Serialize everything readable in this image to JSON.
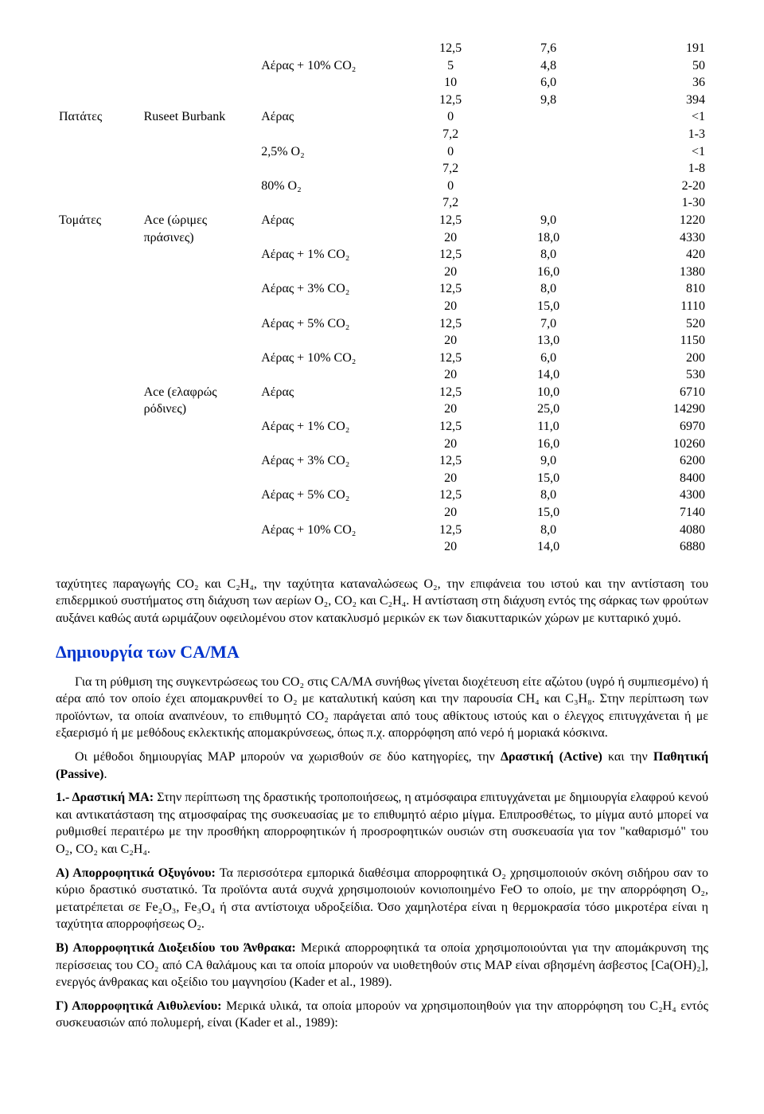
{
  "table": {
    "col_widths": [
      "13%",
      "18%",
      "22%",
      "15%",
      "15%",
      "17%"
    ],
    "font_size_pt": 12,
    "rows": [
      [
        "",
        "",
        "",
        "12,5",
        "7,6",
        "191"
      ],
      [
        "",
        "",
        "Αέρας + 10% CO₂",
        "5",
        "4,8",
        "50"
      ],
      [
        "",
        "",
        "",
        "10",
        "6,0",
        "36"
      ],
      [
        "",
        "",
        "",
        "12,5",
        "9,8",
        "394"
      ],
      [
        "Πατάτες",
        "Ruseet Burbank",
        "Αέρας",
        "0",
        "",
        "<1"
      ],
      [
        "",
        "",
        "",
        "7,2",
        "",
        "1-3"
      ],
      [
        "",
        "",
        "2,5% O₂",
        "0",
        "",
        "<1"
      ],
      [
        "",
        "",
        "",
        "7,2",
        "",
        "1-8"
      ],
      [
        "",
        "",
        "80% O₂",
        "0",
        "",
        "2-20"
      ],
      [
        "",
        "",
        "",
        "7,2",
        "",
        "1-30"
      ],
      [
        "Τομάτες",
        "Ace (ώριμες",
        "Αέρας",
        "12,5",
        "9,0",
        "1220"
      ],
      [
        "",
        "πράσινες)",
        "",
        "20",
        "18,0",
        "4330"
      ],
      [
        "",
        "",
        "Αέρας + 1% CO₂",
        "12,5",
        "8,0",
        "420"
      ],
      [
        "",
        "",
        "",
        "20",
        "16,0",
        "1380"
      ],
      [
        "",
        "",
        "Αέρας + 3% CO₂",
        "12,5",
        "8,0",
        "810"
      ],
      [
        "",
        "",
        "",
        "20",
        "15,0",
        "1110"
      ],
      [
        "",
        "",
        "Αέρας + 5% CO₂",
        "12,5",
        "7,0",
        "520"
      ],
      [
        "",
        "",
        "",
        "20",
        "13,0",
        "1150"
      ],
      [
        "",
        "",
        "Αέρας + 10% CO₂",
        "12,5",
        "6,0",
        "200"
      ],
      [
        "",
        "",
        "",
        "20",
        "14,0",
        "530"
      ],
      [
        "",
        "Ace (ελαφρώς",
        "Αέρας",
        "12,5",
        "10,0",
        "6710"
      ],
      [
        "",
        "ρόδινες)",
        "",
        "20",
        "25,0",
        "14290"
      ],
      [
        "",
        "",
        "Αέρας + 1% CO₂",
        "12,5",
        "11,0",
        "6970"
      ],
      [
        "",
        "",
        "",
        "20",
        "16,0",
        "10260"
      ],
      [
        "",
        "",
        "Αέρας + 3% CO₂",
        "12,5",
        "9,0",
        "6200"
      ],
      [
        "",
        "",
        "",
        "20",
        "15,0",
        "8400"
      ],
      [
        "",
        "",
        "Αέρας + 5% CO₂",
        "12,5",
        "8,0",
        "4300"
      ],
      [
        "",
        "",
        "",
        "20",
        "15,0",
        "7140"
      ],
      [
        "",
        "",
        "Αέρας + 10% CO₂",
        "12,5",
        "8,0",
        "4080"
      ],
      [
        "",
        "",
        "",
        "20",
        "14,0",
        "6880"
      ]
    ]
  },
  "para1": "ταχύτητες παραγωγής CO₂ και C₂H₄, την ταχύτητα καταναλώσεως O₂, την επιφάνεια του ιστού και την αντίσταση του επιδερμικού συστήματος στη διάχυση των αερίων O₂, CO₂ και C₂H₄. Η αντίσταση στη διάχυση εντός της σάρκας των φρούτων αυξάνει καθώς αυτά ωριμάζουν οφειλομένου στον κατακλυσμό μερικών εκ των διακυτταρικών χώρων με κυτταρικό χυμό.",
  "heading": "Δημιουργία των CA/MA",
  "heading_color": "#0033cc",
  "para2": "Για τη ρύθμιση της συγκεντρώσεως του CO₂ στις CA/MA συνήθως γίνεται διοχέτευση είτε αζώτου (υγρό ή συμπιεσμένο) ή αέρα από τον οποίο έχει απομακρυνθεί το O₂ με καταλυτική καύση και την παρουσία CH₄ και C₃H₈. Στην περίπτωση των προϊόντων, τα οποία αναπνέουν, το επιθυμητό CO₂ παράγεται από τους αθίκτους ιστούς και ο έλεγχος επιτυγχάνεται ή με εξαερισμό ή με μεθόδους εκλεκτικής απομακρύνσεως, όπως π.χ. απορρόφηση από νερό ή μοριακά κόσκινα.",
  "para3_a": "Οι μέθοδοι δημιουργίας MAP μπορούν να χωρισθούν σε δύο κατηγορίες, την ",
  "para3_b1": "Δραστική (Active)",
  "para3_mid": " και την ",
  "para3_b2": "Παθητική (Passive)",
  "para3_end": ".",
  "para4_b": "1.- Δραστική MA:",
  "para4": " Στην περίπτωση της δραστικής τροποποιήσεως, η ατμόσφαιρα επιτυγχάνεται με δημιουργία ελαφρού κενού και αντικατάσταση της ατμοσφαίρας της συσκευασίας με το επιθυμητό αέριο μίγμα. Επιπροσθέτως, το μίγμα αυτό μπορεί να ρυθμισθεί περαιτέρω με την προσθήκη απορροφητικών ή προσροφητικών ουσιών στη συσκευασία για τον \"καθαρισμό\" του O₂, CO₂ και C₂H₄.",
  "para5_b": "Α) Απορροφητικά Οξυγόνου:",
  "para5": " Τα περισσότερα εμπορικά διαθέσιμα απορροφητικά O₂ χρησιμοποιούν σκόνη σιδήρου σαν το κύριο δραστικό συστατικό. Τα προϊόντα αυτά συχνά χρησιμοποιούν κονιοποιημένο FeO το οποίο, με την απορρόφηση O₂, μετατρέπεται σε Fe₂O₃, Fe₃O₄ ή στα αντίστοιχα υδροξείδια. Όσο χαμηλοτέρα είναι η θερμοκρασία τόσο μικροτέρα είναι η ταχύτητα απορροφήσεως O₂.",
  "para6_b": "Β) Απορροφητικά Διοξειδίου του Άνθρακα:",
  "para6": " Μερικά απορροφητικά τα οποία χρησιμοποιούνται για την απομάκρυνση της περίσσειας του CO₂ από CA θαλάμους και τα οποία μπορούν να υιοθετηθούν στις MAP είναι σβησμένη άσβεστος [Ca(OH)₂], ενεργός άνθρακας και οξείδιο του μαγνησίου (Kader et al., 1989).",
  "para7_b": "Γ) Απορροφητικά Αιθυλενίου:",
  "para7": " Μερικά υλικά, τα οποία μπορούν να χρησιμοποιηθούν για την απορρόφηση του C₂H₄ εντός συσκευασιών από πολυμερή, είναι (Kader et al., 1989):"
}
